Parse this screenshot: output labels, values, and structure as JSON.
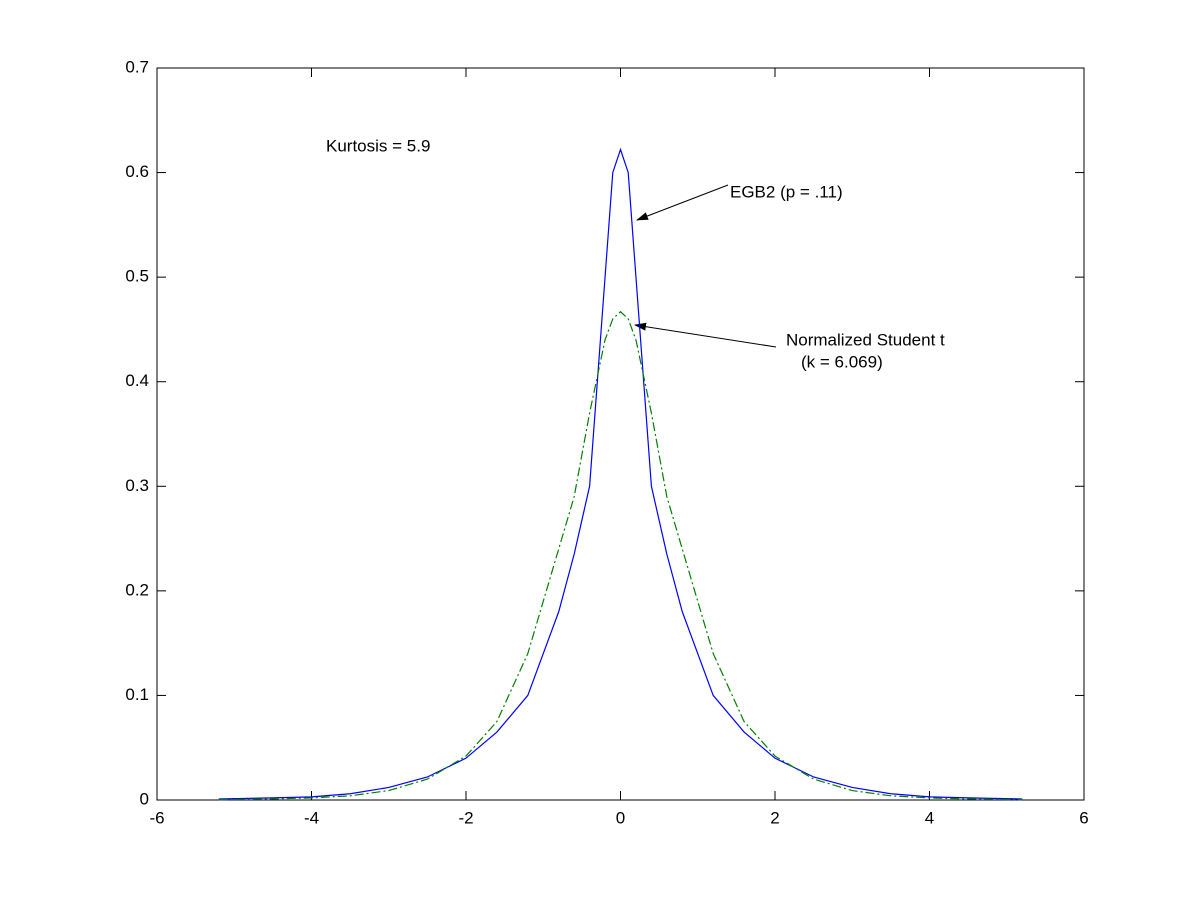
{
  "chart_data": {
    "type": "line",
    "x": [
      -5.2,
      -4.5,
      -4,
      -3.5,
      -3,
      -2.5,
      -2,
      -1.6,
      -1.2,
      -0.8,
      -0.6,
      -0.4,
      -0.2,
      -0.1,
      0,
      0.1,
      0.2,
      0.4,
      0.6,
      0.8,
      1.2,
      1.6,
      2,
      2.5,
      3,
      3.5,
      4,
      4.5,
      5.2
    ],
    "series": [
      {
        "name": "EGB2 (p = .11)",
        "color": "#0000ff",
        "values": [
          0.001,
          0.002,
          0.003,
          0.006,
          0.012,
          0.022,
          0.04,
          0.065,
          0.1,
          0.18,
          0.235,
          0.3,
          0.5,
          0.6,
          0.622,
          0.6,
          0.5,
          0.3,
          0.235,
          0.18,
          0.1,
          0.065,
          0.04,
          0.022,
          0.012,
          0.006,
          0.003,
          0.002,
          0.001
        ]
      },
      {
        "name": "Normalized Student t",
        "color": "#008000",
        "values": [
          0.0003,
          0.001,
          0.002,
          0.004,
          0.009,
          0.02,
          0.042,
          0.075,
          0.14,
          0.24,
          0.29,
          0.37,
          0.44,
          0.46,
          0.467,
          0.46,
          0.44,
          0.37,
          0.29,
          0.24,
          0.14,
          0.075,
          0.042,
          0.02,
          0.009,
          0.004,
          0.002,
          0.001,
          0.0003
        ]
      }
    ],
    "annotations": [
      "Kurtosis = 5.9",
      "EGB2 (p = .11)",
      "Normalized Student t",
      "(k = 6.069)"
    ],
    "xlim": [
      -6,
      6
    ],
    "xticks": [
      -6,
      -4,
      -2,
      0,
      2,
      4,
      6
    ],
    "ylim": [
      0,
      0.7
    ],
    "yticks": [
      0,
      0.1,
      0.2,
      0.3,
      0.4,
      0.5,
      0.6,
      0.7
    ]
  }
}
